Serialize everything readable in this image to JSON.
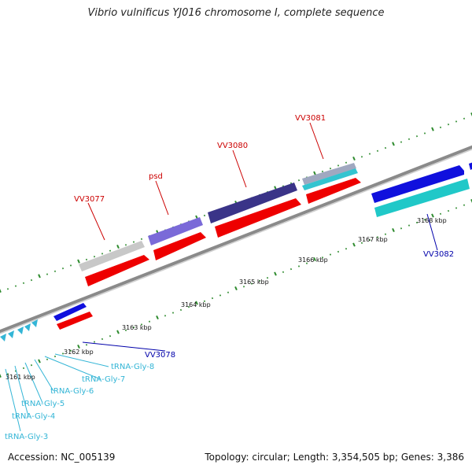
{
  "title": "Vibrio vulnificus YJ016 chromosome I, complete sequence",
  "footer": {
    "accession": "Accession: NC_005139",
    "summary": "Topology: circular; Length: 3,354,505 bp; Genes: 3,386"
  },
  "colors": {
    "gene_label": "#cc0000",
    "trna_label": "#33b5d6",
    "other_label": "#0000aa",
    "backbone": "#8a8a8a",
    "tick": "#2e8b2e",
    "cds": "#ee0000",
    "rna": "#33b5d6"
  },
  "scale_labels": [
    "3161 kbp",
    "3162 kbp",
    "3163 kbp",
    "3164 kbp",
    "3165 kbp",
    "3166 kbp",
    "3167 kbp",
    "3168 kbp"
  ],
  "gene_labels": [
    "VV3077",
    "psd",
    "VV3080",
    "VV3081"
  ],
  "feature_labels": [
    "VV3078",
    "VV3082"
  ],
  "trna_labels": [
    "tRNA-Gly-8",
    "tRNA-Gly-7",
    "tRNA-Gly-6",
    "tRNA-Gly-5",
    "tRNA-Gly-4",
    "tRNA-Gly-3"
  ]
}
